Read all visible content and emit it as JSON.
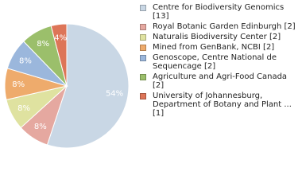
{
  "chart_data": {
    "type": "pie",
    "categories": [
      "Centre for Biodiversity Genomics [13]",
      "Royal Botanic Garden Edinburgh [2]",
      "Naturalis Biodiversity Center [2]",
      "Mined from GenBank, NCBI [2]",
      "Genoscope, Centre National de Sequencage [2]",
      "Agriculture and Agri-Food Canada [2]",
      "University of Johannesburg, Department of Botany and Plant ... [1]"
    ],
    "values": [
      54,
      8,
      8,
      8,
      8,
      8,
      4
    ],
    "value_labels": [
      "54%",
      "8%",
      "8%",
      "8%",
      "8%",
      "8%",
      "4%"
    ],
    "colors": [
      "#c9d7e5",
      "#e5a8a0",
      "#dfe2a0",
      "#eeab6c",
      "#9bb7dc",
      "#9bbf6b",
      "#dd7558"
    ]
  }
}
